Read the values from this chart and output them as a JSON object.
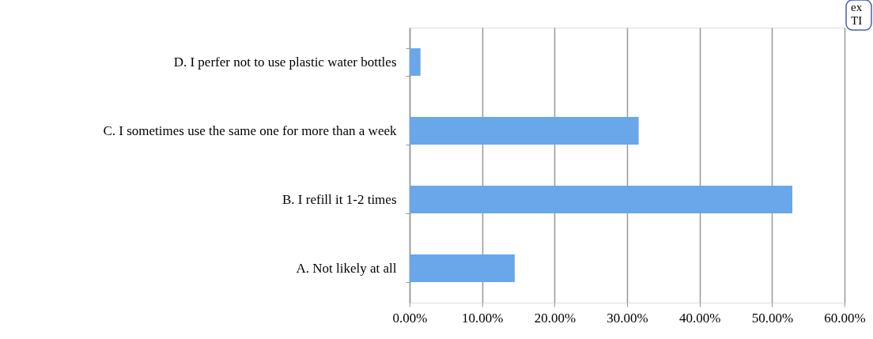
{
  "chart_data": {
    "type": "bar",
    "orientation": "horizontal",
    "categories": [
      "D. I perfer not to use plastic water bottles",
      "C. I sometimes use the same one for more than a week",
      "B. I refill it 1-2 times",
      "A. Not likely at all"
    ],
    "values": [
      1.5,
      31.6,
      52.8,
      14.5
    ],
    "color": "#6aa6ea",
    "xlim": [
      0,
      60
    ],
    "xticks": [
      {
        "value": 0,
        "label": "0.00%"
      },
      {
        "value": 10,
        "label": "10.00%"
      },
      {
        "value": 20,
        "label": "20.00%"
      },
      {
        "value": 30,
        "label": "30.00%"
      },
      {
        "value": 40,
        "label": "40.00%"
      },
      {
        "value": 50,
        "label": "50.00%"
      },
      {
        "value": 60,
        "label": "60.00%"
      }
    ],
    "grid": "x",
    "annotations": [
      "ex\nTI"
    ]
  }
}
